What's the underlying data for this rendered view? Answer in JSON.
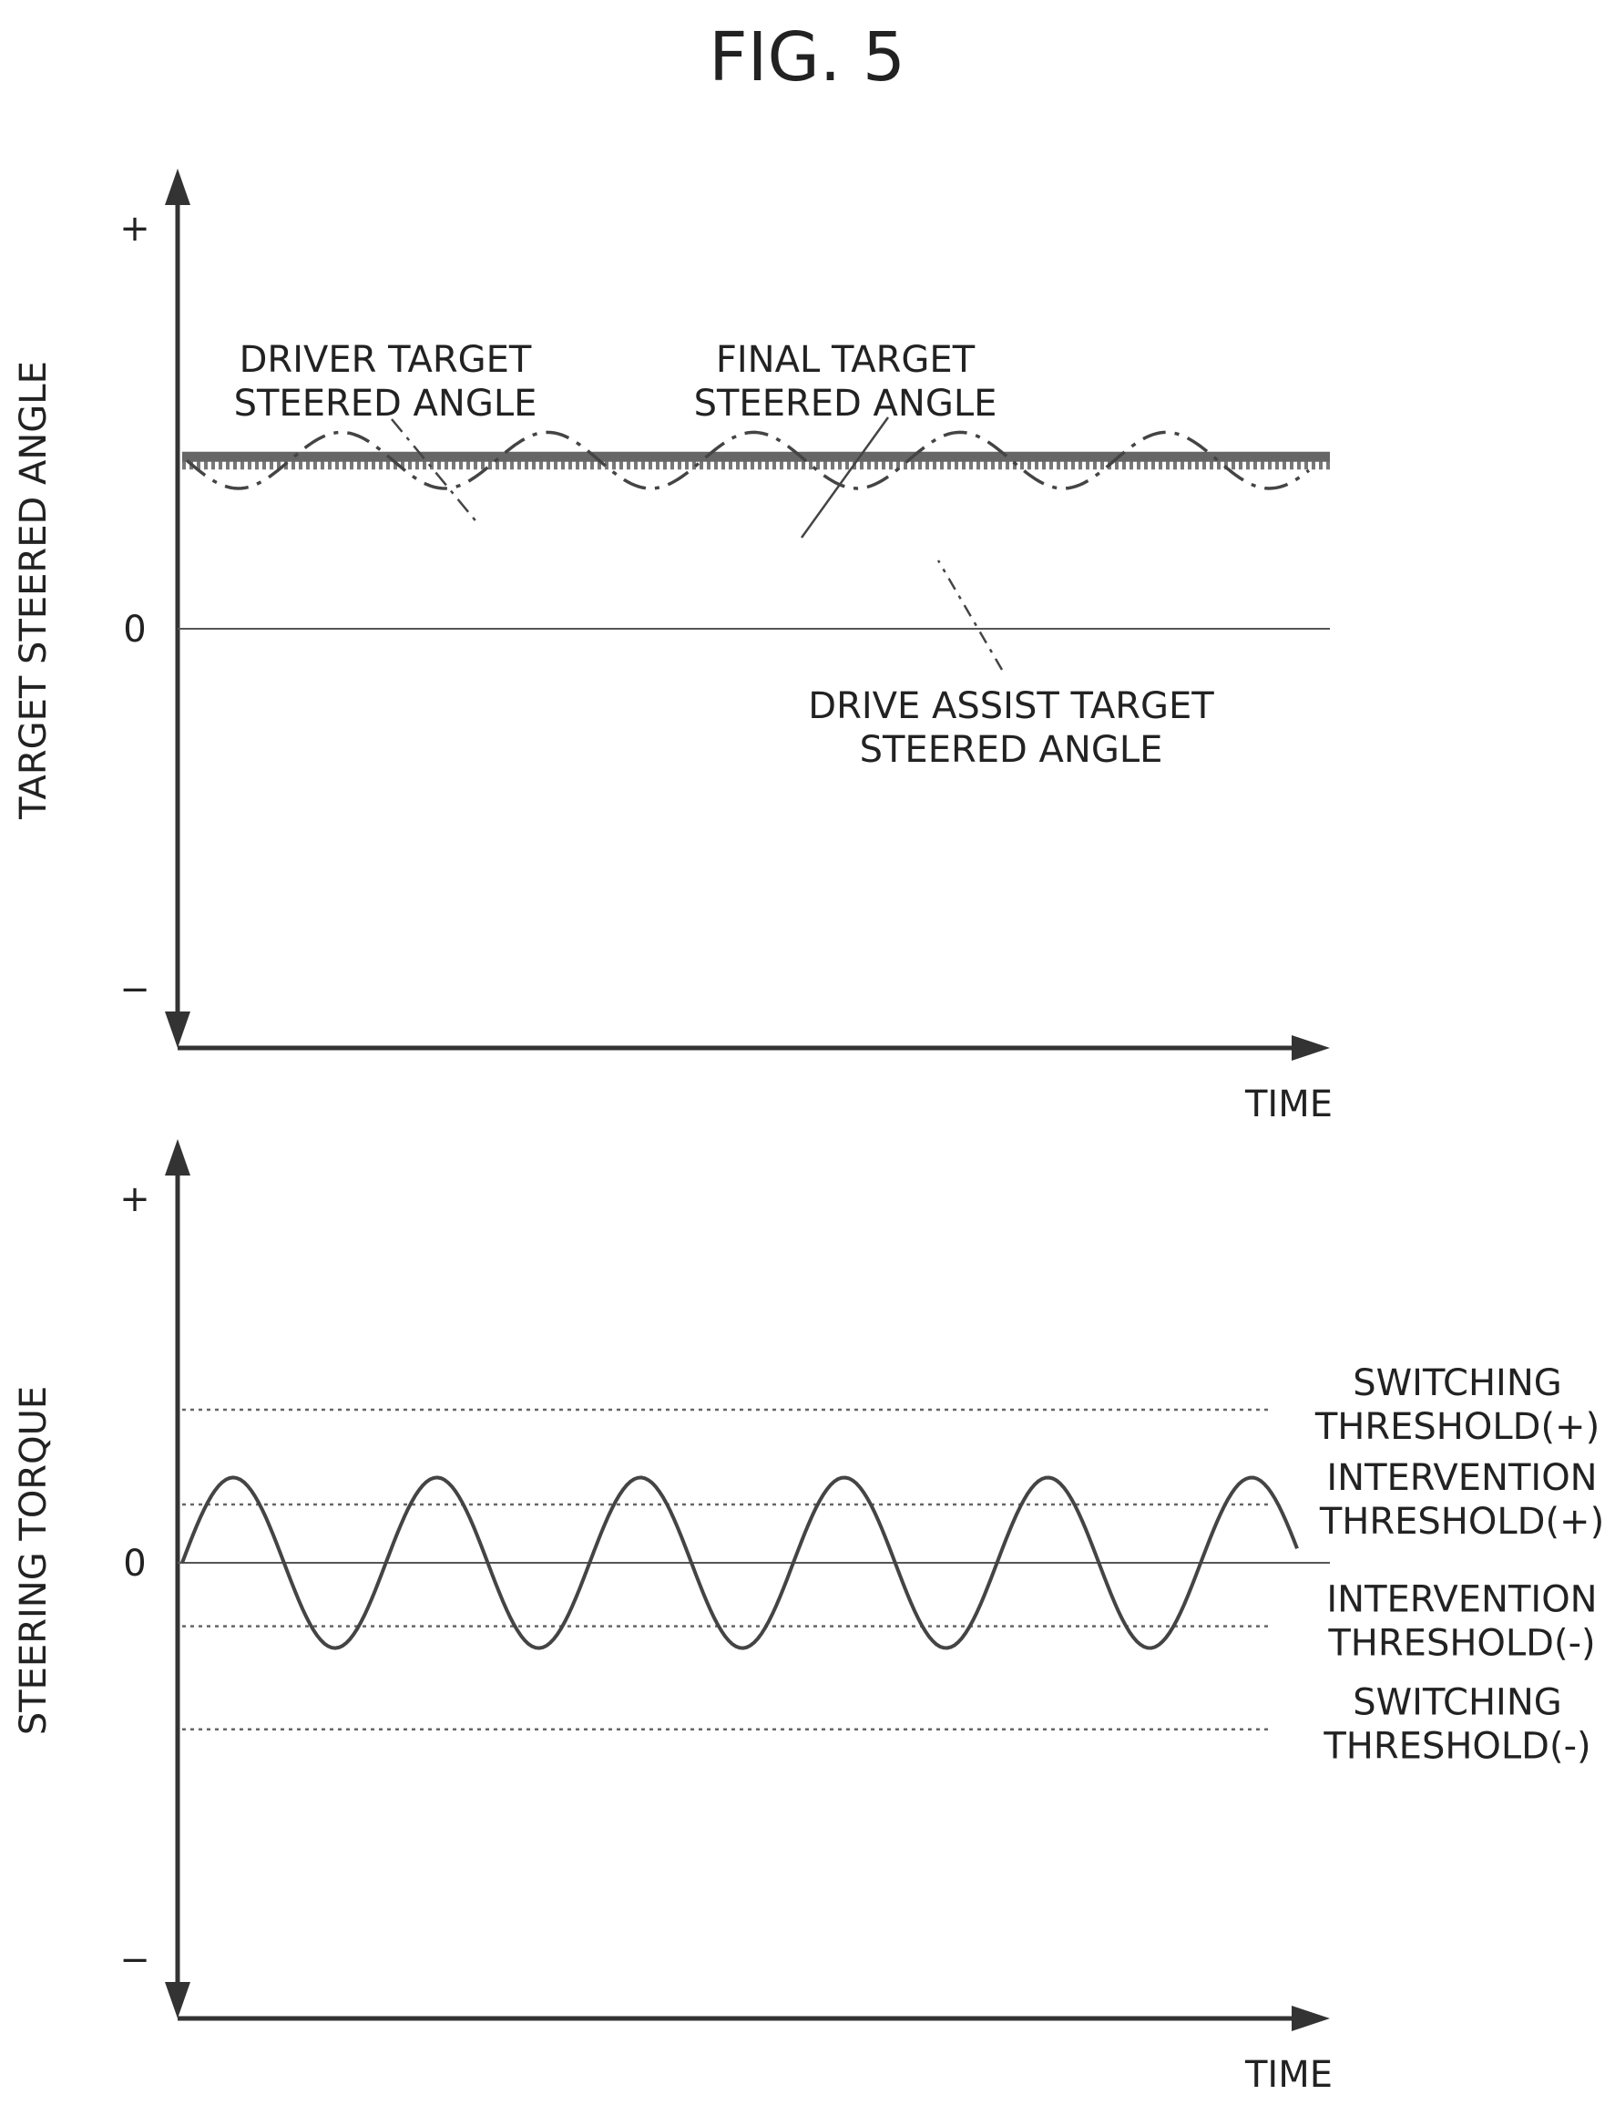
{
  "figure_title": "FIG. 5",
  "chart_data": [
    {
      "type": "line",
      "ylabel": "TARGET STEERED ANGLE",
      "xlabel": "TIME",
      "y_ticks": {
        "plus": "+",
        "zero": "0",
        "minus": "−"
      },
      "ylim": [
        -1,
        1
      ],
      "grid": false,
      "annotations": [
        {
          "text_lines": [
            "DRIVER TARGET",
            "STEERED ANGLE"
          ],
          "points_to": "driver"
        },
        {
          "text_lines": [
            "FINAL TARGET",
            "STEERED ANGLE"
          ],
          "points_to": "final"
        },
        {
          "text_lines": [
            "DRIVE ASSIST TARGET",
            "STEERED ANGLE"
          ],
          "points_to": "assist"
        }
      ],
      "series_styles": {
        "driver": {
          "style": "dash-dot",
          "level": 0.42,
          "amplitude": 0.07,
          "periods": 5.5
        },
        "final": {
          "style": "thick-solid",
          "level": 0.42
        },
        "assist": {
          "style": "dotted",
          "level": 0.42
        }
      }
    },
    {
      "type": "line",
      "ylabel": "STEERING TORQUE",
      "xlabel": "TIME",
      "y_ticks": {
        "plus": "+",
        "zero": "0",
        "minus": "−"
      },
      "ylim": [
        -1,
        1
      ],
      "grid": false,
      "reference_lines": [
        {
          "value": 0.42,
          "label_lines": [
            "SWITCHING",
            "THRESHOLD(+)"
          ],
          "style": "dotted"
        },
        {
          "value": 0.16,
          "label_lines": [
            "INTERVENTION",
            "THRESHOLD(+)"
          ],
          "style": "dotted"
        },
        {
          "value": -0.16,
          "label_lines": [
            "INTERVENTION",
            "THRESHOLD(-)"
          ],
          "style": "dotted"
        },
        {
          "value": -0.42,
          "label_lines": [
            "SWITCHING",
            "THRESHOLD(-)"
          ],
          "style": "dotted"
        }
      ],
      "series": [
        {
          "kind": "sine",
          "amplitude": 0.09,
          "periods": 5.5
        }
      ]
    }
  ]
}
